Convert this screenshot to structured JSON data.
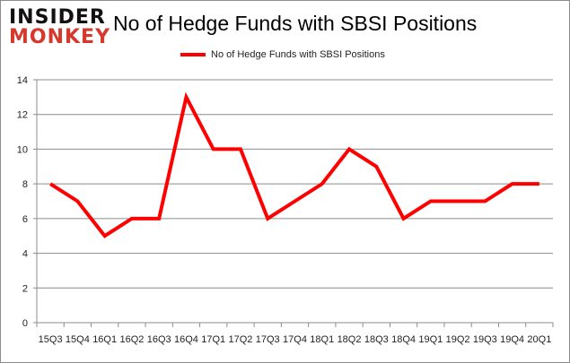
{
  "logo": {
    "line1": "INSIDER",
    "line2": "MONKEY"
  },
  "chart_data": {
    "type": "line",
    "title": "No of Hedge Funds with SBSI Positions",
    "xlabel": "",
    "ylabel": "",
    "categories": [
      "15Q3",
      "15Q4",
      "16Q1",
      "16Q2",
      "16Q3",
      "16Q4",
      "17Q1",
      "17Q2",
      "17Q3",
      "17Q4",
      "18Q1",
      "18Q2",
      "18Q3",
      "18Q4",
      "19Q1",
      "19Q2",
      "19Q3",
      "19Q4",
      "20Q1"
    ],
    "series": [
      {
        "name": "No of Hedge Funds with SBSI Positions",
        "color": "#ff0000",
        "values": [
          8,
          7,
          5,
          6,
          6,
          13,
          10,
          10,
          6,
          7,
          8,
          10,
          9,
          6,
          7,
          7,
          7,
          8,
          8
        ]
      }
    ],
    "ylim": [
      0,
      14
    ],
    "yticks": [
      0,
      2,
      4,
      6,
      8,
      10,
      12,
      14
    ],
    "grid": true,
    "legend": "top-center"
  }
}
